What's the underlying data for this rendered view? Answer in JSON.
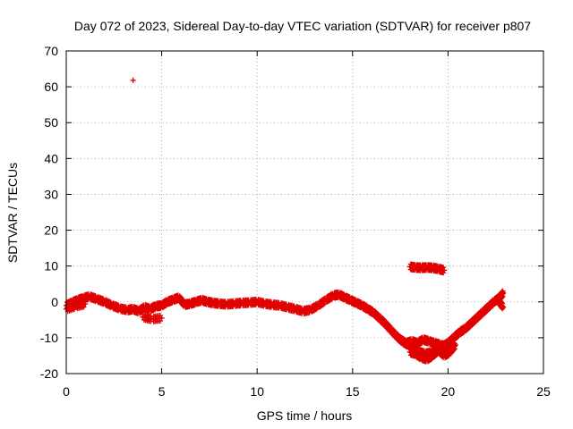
{
  "chart_data": {
    "type": "scatter",
    "title": "Day 072 of 2023, Sidereal Day-to-day VTEC variation (SDTVAR) for receiver p807",
    "xlabel": "GPS time / hours",
    "ylabel": "SDTVAR / TECUs",
    "xlim": [
      0,
      25
    ],
    "ylim": [
      -20,
      70
    ],
    "x_ticks": [
      0,
      5,
      10,
      15,
      20,
      25
    ],
    "y_ticks": [
      -20,
      -10,
      0,
      10,
      20,
      30,
      40,
      50,
      60,
      70
    ],
    "grid": true,
    "marker": "+",
    "color": "#e00000",
    "series": [
      {
        "name": "main-track",
        "x": [
          0.0,
          0.3,
          0.6,
          0.9,
          1.2,
          1.6,
          2.0,
          2.4,
          2.8,
          3.2,
          3.5,
          3.8,
          4.1,
          4.4,
          4.7,
          5.0,
          5.3,
          5.6,
          5.9,
          6.2,
          6.5,
          6.8,
          7.1,
          7.4,
          7.7,
          8.0,
          8.4,
          8.8,
          9.2,
          9.6,
          10.0,
          10.4,
          10.8,
          11.2,
          11.6,
          12.0,
          12.4,
          12.8,
          13.2,
          13.6,
          14.0,
          14.3,
          14.6,
          14.9,
          15.2,
          15.5,
          15.8,
          16.1,
          16.4,
          16.7,
          17.0,
          17.3,
          17.6,
          17.9,
          18.2,
          18.5,
          18.8,
          19.1,
          19.4,
          19.7,
          20.0,
          20.3,
          20.6,
          20.9,
          21.2,
          21.5,
          21.8,
          22.1,
          22.4,
          22.7,
          22.9
        ],
        "y": [
          -1.0,
          -0.2,
          0.5,
          1.0,
          1.5,
          0.8,
          0.0,
          -1.0,
          -1.8,
          -2.3,
          -2.0,
          -2.6,
          -1.5,
          -2.0,
          -1.2,
          -1.0,
          0.0,
          0.6,
          1.2,
          -0.8,
          -0.5,
          0.0,
          0.5,
          0.0,
          -0.3,
          -0.5,
          -0.7,
          -0.5,
          -0.3,
          -0.2,
          0.0,
          -0.5,
          -0.8,
          -1.0,
          -1.5,
          -2.0,
          -2.6,
          -2.2,
          -1.0,
          0.5,
          1.8,
          2.0,
          1.2,
          0.5,
          -0.3,
          -1.0,
          -2.0,
          -3.0,
          -4.5,
          -6.0,
          -7.8,
          -9.5,
          -11.0,
          -12.0,
          -13.0,
          -14.0,
          -14.5,
          -14.2,
          -13.5,
          -12.5,
          -11.5,
          -10.0,
          -8.5,
          -7.5,
          -6.0,
          -4.5,
          -3.0,
          -1.5,
          0.0,
          1.2,
          2.5
        ]
      },
      {
        "name": "lower-branch",
        "x": [
          0.0,
          0.5,
          1.0,
          4.0,
          4.5,
          5.0,
          18.0,
          18.3,
          18.6,
          18.9,
          19.2,
          19.5,
          19.8,
          20.1,
          20.4
        ],
        "y": [
          -2.0,
          -1.2,
          -0.6,
          -4.2,
          -4.8,
          -4.5,
          -14.0,
          -14.5,
          -15.5,
          -16.0,
          -15.0,
          -13.5,
          -15.0,
          -14.0,
          -12.0
        ]
      },
      {
        "name": "upper-branch",
        "x": [
          17.5,
          17.8,
          18.1,
          18.4,
          18.7,
          19.0,
          19.3,
          19.6,
          19.9,
          20.2,
          22.6,
          22.9
        ],
        "y": [
          -10.5,
          -11.5,
          -11.0,
          -11.5,
          -10.5,
          -11.0,
          -11.5,
          -12.0,
          -12.5,
          -12.0,
          0.5,
          -1.5
        ]
      },
      {
        "name": "elevated-segment",
        "x": [
          18.0,
          18.3,
          18.6,
          18.9,
          19.2,
          19.5,
          19.8
        ],
        "y": [
          9.8,
          9.6,
          9.5,
          9.6,
          9.5,
          9.2,
          8.8
        ]
      },
      {
        "name": "outlier",
        "x": [
          3.5
        ],
        "y": [
          61.8
        ]
      }
    ]
  }
}
